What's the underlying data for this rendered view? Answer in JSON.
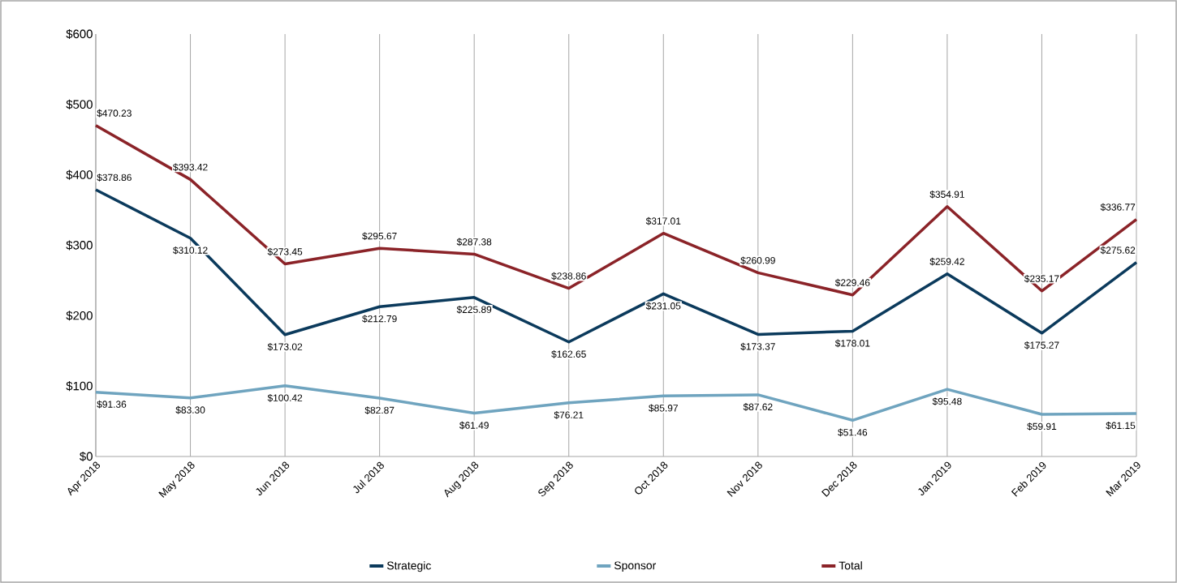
{
  "chart_data": {
    "type": "line",
    "categories": [
      "Apr 2018",
      "May 2018",
      "Jun 2018",
      "Jul 2018",
      "Aug 2018",
      "Sep 2018",
      "Oct 2018",
      "Nov 2018",
      "Dec 2018",
      "Jan 2019",
      "Feb 2019",
      "Mar 2019"
    ],
    "series": [
      {
        "name": "Strategic",
        "color": "#0b3a5c",
        "values": [
          378.86,
          310.12,
          173.02,
          212.79,
          225.89,
          162.65,
          231.05,
          173.37,
          178.01,
          259.42,
          175.27,
          275.62
        ],
        "value_labels": [
          "$378.86",
          "$310.12",
          "$173.02",
          "$212.79",
          "$225.89",
          "$162.65",
          "$231.05",
          "$173.37",
          "$178.01",
          "$259.42",
          "$175.27",
          "$275.62"
        ]
      },
      {
        "name": "Sponsor",
        "color": "#6fa4bf",
        "values": [
          91.36,
          83.3,
          100.42,
          82.87,
          61.49,
          76.21,
          85.97,
          87.62,
          51.46,
          95.48,
          59.91,
          61.15
        ],
        "value_labels": [
          "$91.36",
          "$83.30",
          "$100.42",
          "$82.87",
          "$61.49",
          "$76.21",
          "$85.97",
          "$87.62",
          "$51.46",
          "$95.48",
          "$59.91",
          "$61.15"
        ]
      },
      {
        "name": "Total",
        "color": "#8b2328",
        "values": [
          470.23,
          393.42,
          273.45,
          295.67,
          287.38,
          238.86,
          317.01,
          260.99,
          229.46,
          354.91,
          235.17,
          336.77
        ],
        "value_labels": [
          "$470.23",
          "$393.42",
          "$273.45",
          "$295.67",
          "$287.38",
          "$238.86",
          "$317.01",
          "$260.99",
          "$229.46",
          "$354.91",
          "$235.17",
          "$336.77"
        ]
      }
    ],
    "ylim": [
      0,
      600
    ],
    "yticks": [
      {
        "value": 0,
        "label": "$0"
      },
      {
        "value": 100,
        "label": "$100"
      },
      {
        "value": 200,
        "label": "$200"
      },
      {
        "value": 300,
        "label": "$300"
      },
      {
        "value": 400,
        "label": "$400"
      },
      {
        "value": 500,
        "label": "$500"
      },
      {
        "value": 600,
        "label": "$600"
      }
    ],
    "grid": "x",
    "legend": "bottom",
    "marker": "none",
    "line_style": "solid"
  }
}
